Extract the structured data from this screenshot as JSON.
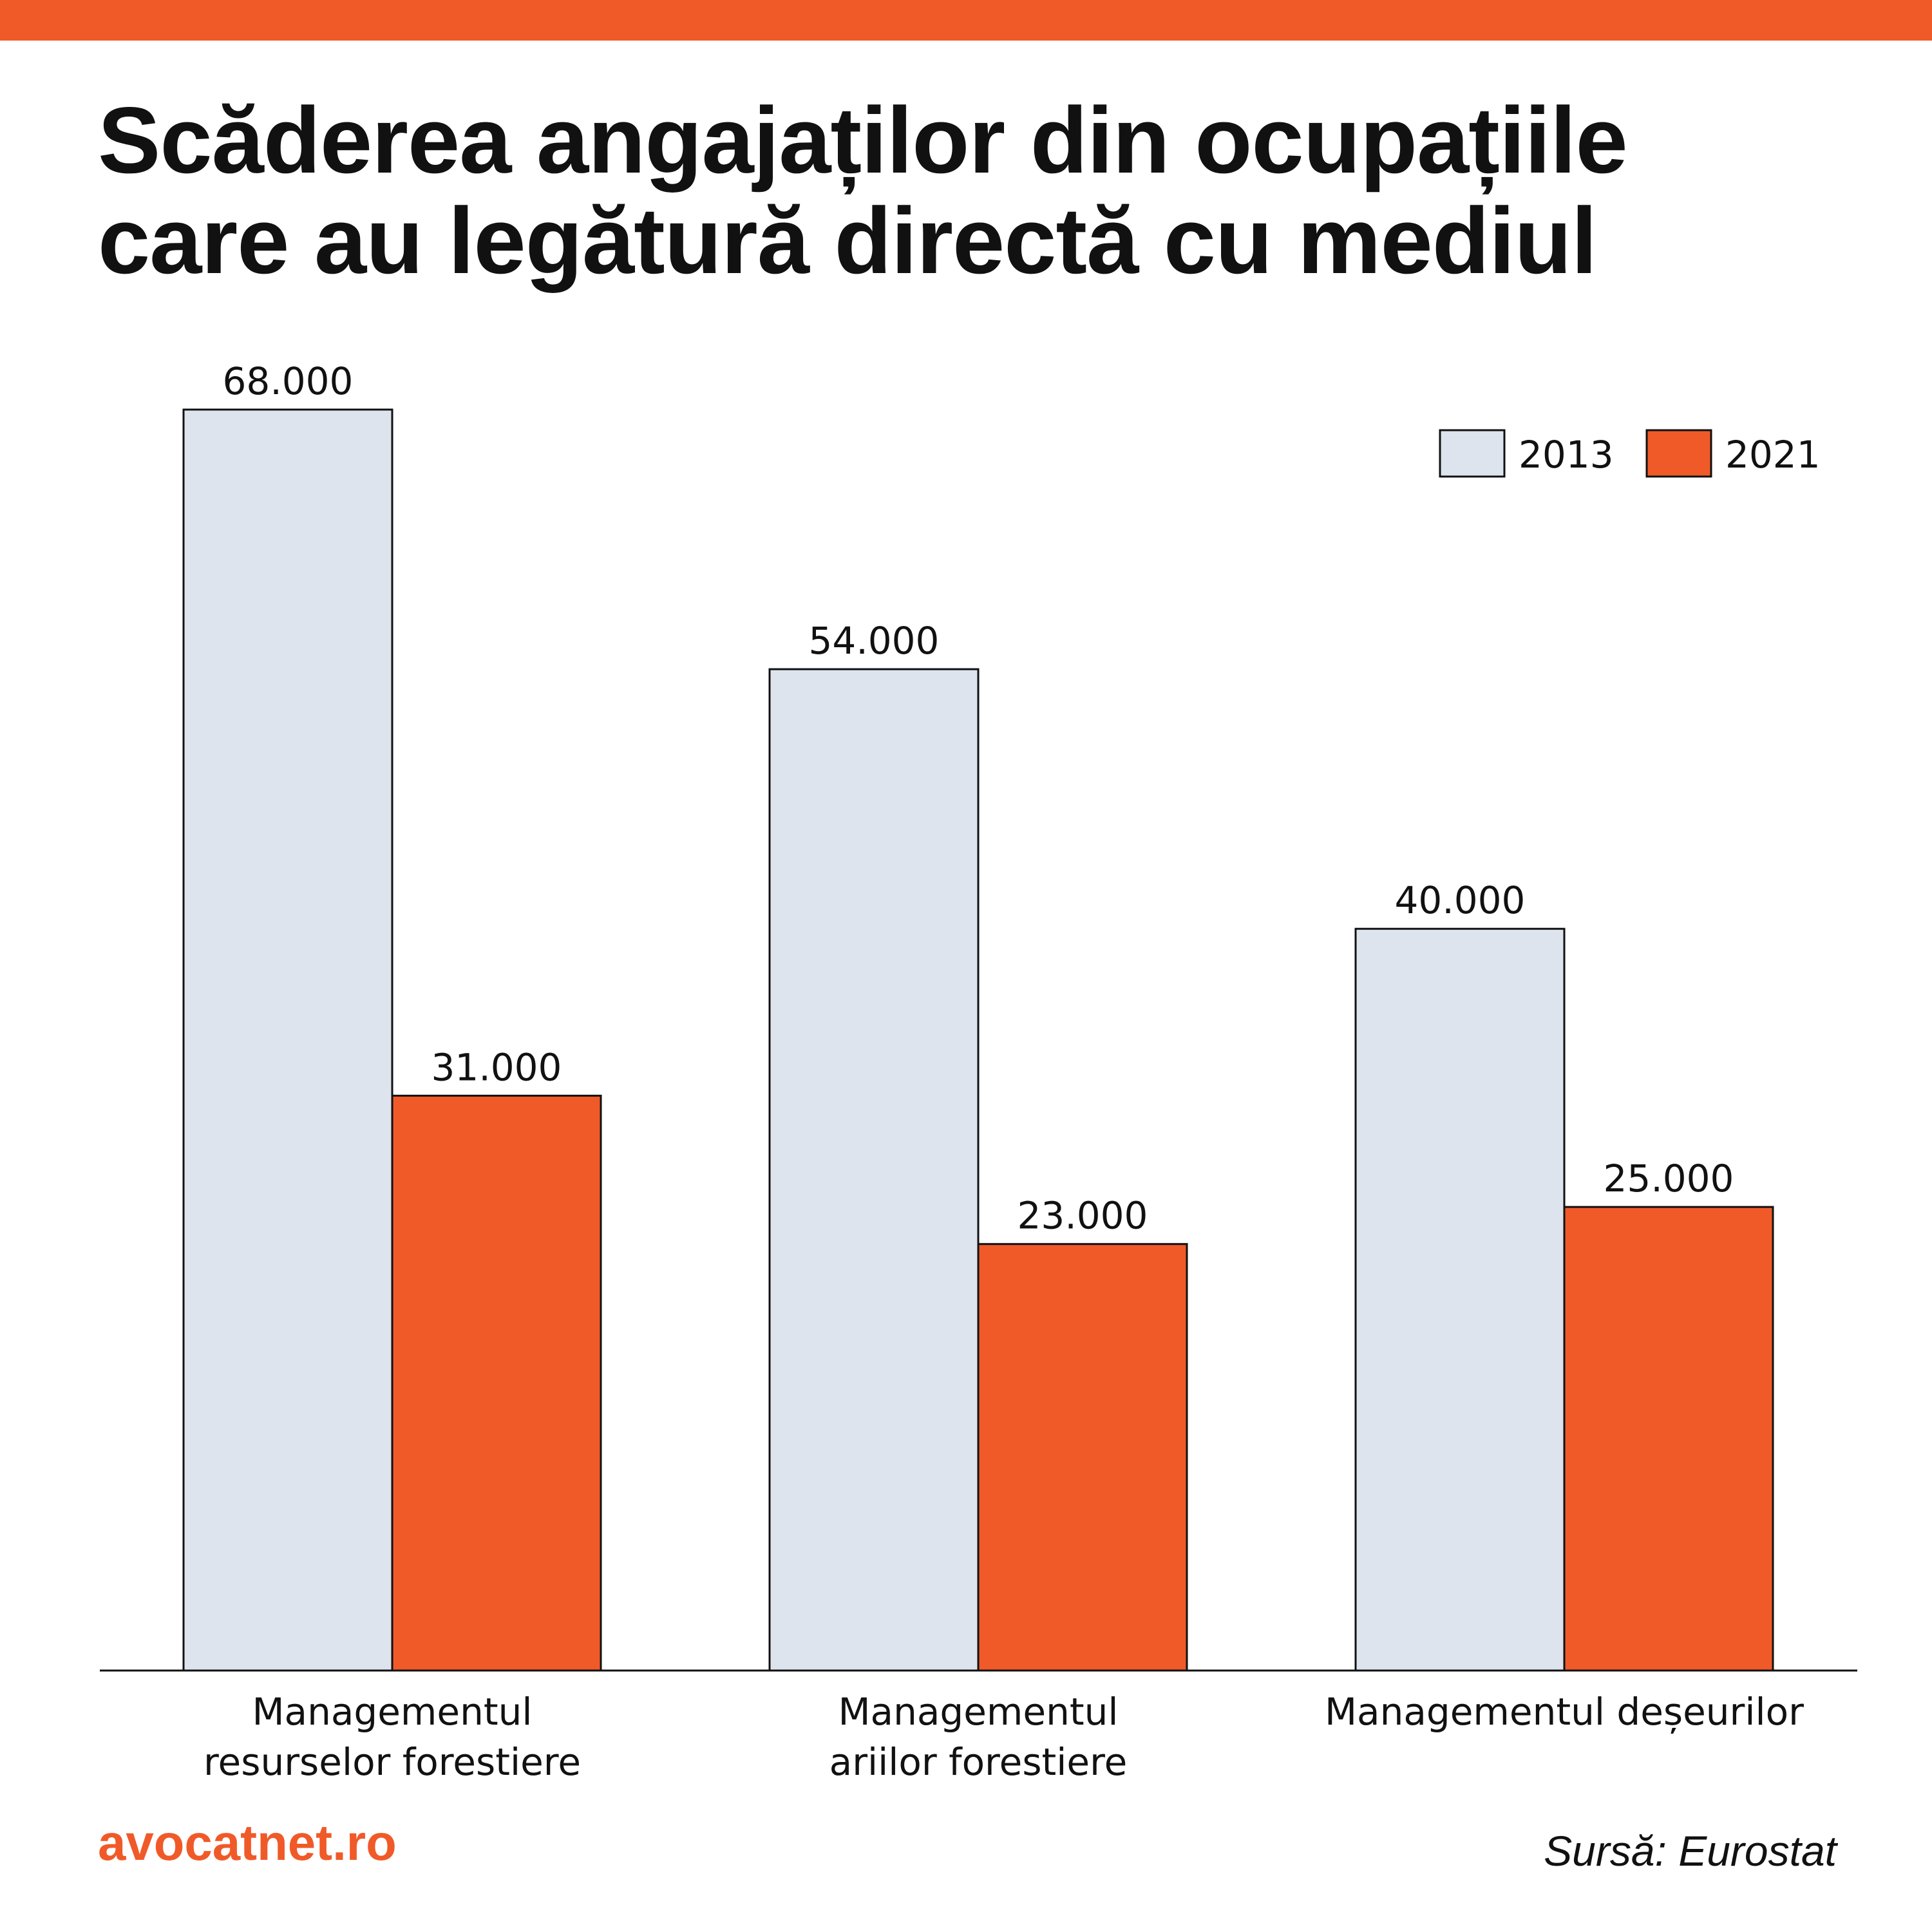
{
  "colors": {
    "accent": "#f05a28",
    "bar_2013": "#dde4ee",
    "bar_2021": "#f05a28",
    "text": "#111111"
  },
  "header": {
    "title_line1": "Scăderea angajaților din ocupațiile",
    "title_line2": "care au legătură directă cu mediul"
  },
  "chart_data": {
    "type": "bar",
    "title": "Scăderea angajaților din ocupațiile care au legătură directă cu mediul",
    "categories": [
      [
        "Managementul",
        "resurselor forestiere"
      ],
      [
        "Managementul",
        "ariilor forestiere"
      ],
      [
        "Managementul deșeurilor"
      ]
    ],
    "series": [
      {
        "name": "2013",
        "values": [
          68000,
          54000,
          40000
        ],
        "labels": [
          "68.000",
          "54.000",
          "40.000"
        ],
        "color": "#dde4ee"
      },
      {
        "name": "2021",
        "values": [
          31000,
          23000,
          25000
        ],
        "labels": [
          "31.000",
          "23.000",
          "25.000"
        ],
        "color": "#f05a28"
      }
    ],
    "ylim": [
      0,
      68000
    ],
    "grid": false,
    "legend": "top-right",
    "xlabel": "",
    "ylabel": ""
  },
  "footer": {
    "brand": "avocatnet.ro",
    "source": "Sursă: Eurostat"
  }
}
